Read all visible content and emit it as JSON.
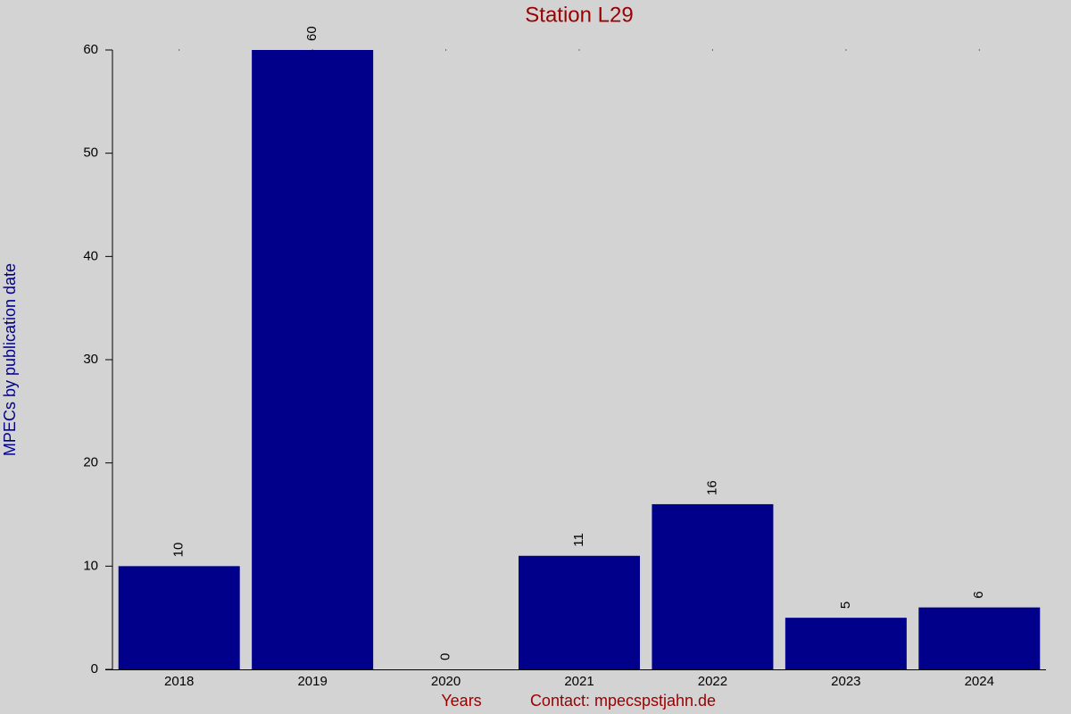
{
  "chart_data": {
    "type": "bar",
    "title": "Station L29",
    "y_label": "MPECs by publication date",
    "x_label": "Years",
    "contact": "Contact: mpecspstjahn.de",
    "categories": [
      "2018",
      "2019",
      "2020",
      "2021",
      "2022",
      "2023",
      "2024"
    ],
    "values": [
      10,
      60,
      0,
      11,
      16,
      5,
      6
    ],
    "color": "#00008b",
    "ylim": [
      0,
      60
    ],
    "yticks": [
      0,
      10,
      20,
      30,
      40,
      50,
      60
    ]
  }
}
